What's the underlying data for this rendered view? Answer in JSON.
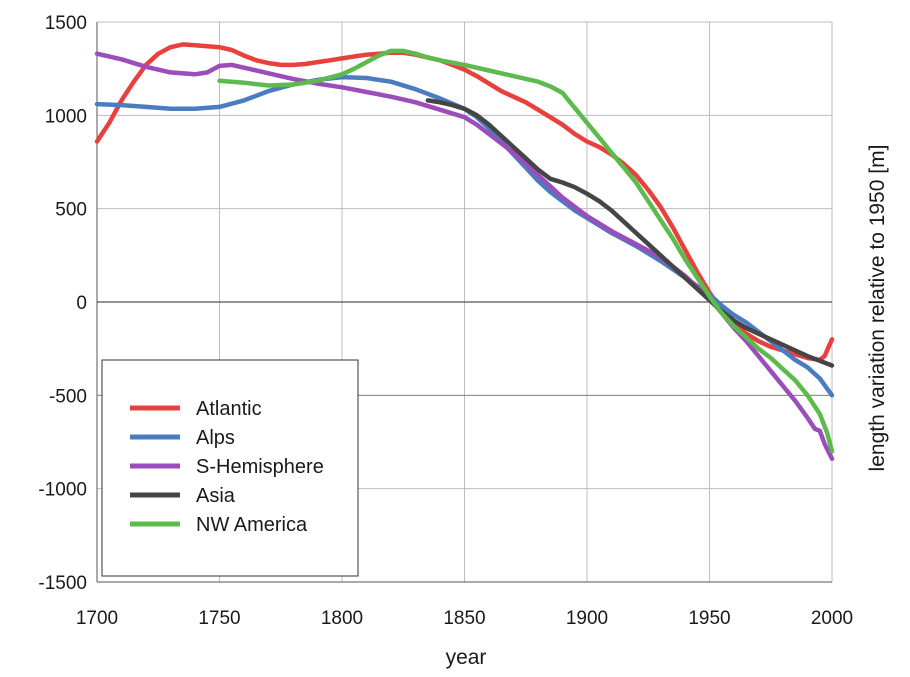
{
  "chart_data": {
    "type": "line",
    "title": "",
    "xlabel": "year",
    "ylabel": "length variation relative to 1950 [m]",
    "xlim": [
      1700,
      2000
    ],
    "ylim": [
      -1500,
      1500
    ],
    "x_ticks": [
      1700,
      1750,
      1800,
      1850,
      1900,
      1950,
      2000
    ],
    "y_ticks": [
      1500,
      1000,
      500,
      0,
      -500,
      -1000,
      -1500
    ],
    "x_tick_labels": [
      "1700",
      "1750",
      "1800",
      "1850",
      "1900",
      "1950",
      "2000"
    ],
    "y_tick_labels": [
      "1500",
      "1000",
      "500",
      "0",
      "-500",
      "-1000",
      "-1500"
    ],
    "grid": true,
    "legend_position": "bottom-left",
    "series": [
      {
        "name": "Atlantic",
        "color": "#e8403c",
        "x": [
          1700,
          1705,
          1710,
          1715,
          1720,
          1725,
          1730,
          1735,
          1740,
          1745,
          1750,
          1755,
          1760,
          1765,
          1770,
          1775,
          1780,
          1785,
          1790,
          1795,
          1800,
          1805,
          1810,
          1815,
          1820,
          1825,
          1830,
          1835,
          1840,
          1845,
          1850,
          1855,
          1860,
          1865,
          1870,
          1875,
          1880,
          1885,
          1890,
          1895,
          1900,
          1905,
          1910,
          1915,
          1920,
          1925,
          1930,
          1935,
          1940,
          1945,
          1950,
          1955,
          1960,
          1965,
          1970,
          1975,
          1980,
          1985,
          1990,
          1995,
          1997,
          2000
        ],
        "y": [
          860,
          960,
          1080,
          1180,
          1270,
          1330,
          1365,
          1380,
          1375,
          1370,
          1365,
          1350,
          1320,
          1295,
          1280,
          1270,
          1270,
          1275,
          1285,
          1295,
          1305,
          1315,
          1325,
          1330,
          1335,
          1335,
          1325,
          1310,
          1295,
          1270,
          1245,
          1210,
          1170,
          1130,
          1100,
          1070,
          1030,
          990,
          950,
          900,
          860,
          830,
          790,
          740,
          680,
          600,
          510,
          400,
          280,
          160,
          50,
          -40,
          -120,
          -170,
          -210,
          -240,
          -260,
          -280,
          -300,
          -310,
          -290,
          -200
        ]
      },
      {
        "name": "Alps",
        "color": "#4b7cc0",
        "x": [
          1700,
          1710,
          1720,
          1730,
          1740,
          1750,
          1760,
          1770,
          1780,
          1790,
          1800,
          1810,
          1820,
          1830,
          1840,
          1850,
          1855,
          1860,
          1865,
          1870,
          1875,
          1880,
          1885,
          1890,
          1895,
          1900,
          1910,
          1920,
          1930,
          1940,
          1950,
          1955,
          1960,
          1965,
          1970,
          1975,
          1980,
          1985,
          1990,
          1995,
          2000
        ],
        "y": [
          1060,
          1055,
          1045,
          1035,
          1035,
          1045,
          1080,
          1130,
          1165,
          1190,
          1205,
          1200,
          1180,
          1140,
          1090,
          1035,
          990,
          930,
          860,
          790,
          720,
          650,
          590,
          540,
          490,
          450,
          370,
          300,
          220,
          130,
          40,
          -20,
          -70,
          -110,
          -160,
          -210,
          -260,
          -310,
          -350,
          -410,
          -500
        ]
      },
      {
        "name": "S-Hemisphere",
        "color": "#9b4dbb",
        "x": [
          1700,
          1710,
          1720,
          1730,
          1740,
          1745,
          1750,
          1755,
          1760,
          1770,
          1780,
          1790,
          1800,
          1810,
          1820,
          1830,
          1840,
          1850,
          1855,
          1860,
          1865,
          1870,
          1875,
          1880,
          1885,
          1890,
          1895,
          1900,
          1905,
          1910,
          1920,
          1930,
          1940,
          1950,
          1955,
          1960,
          1965,
          1970,
          1975,
          1980,
          1985,
          1990,
          1993,
          1995,
          1997,
          2000
        ],
        "y": [
          1330,
          1300,
          1260,
          1230,
          1220,
          1230,
          1265,
          1270,
          1255,
          1225,
          1195,
          1170,
          1150,
          1125,
          1100,
          1070,
          1030,
          990,
          950,
          900,
          850,
          800,
          740,
          680,
          620,
          560,
          510,
          460,
          420,
          380,
          310,
          240,
          140,
          20,
          -60,
          -140,
          -210,
          -290,
          -370,
          -450,
          -530,
          -620,
          -680,
          -690,
          -760,
          -840
        ]
      },
      {
        "name": "Asia",
        "color": "#454545",
        "x": [
          1835,
          1840,
          1845,
          1850,
          1855,
          1860,
          1865,
          1870,
          1875,
          1880,
          1885,
          1890,
          1895,
          1900,
          1905,
          1910,
          1915,
          1920,
          1925,
          1930,
          1935,
          1940,
          1945,
          1950,
          1955,
          1960,
          1965,
          1970,
          1975,
          1980,
          1985,
          1990,
          1995,
          2000
        ],
        "y": [
          1080,
          1070,
          1055,
          1035,
          1000,
          950,
          890,
          830,
          770,
          710,
          660,
          640,
          615,
          580,
          540,
          490,
          430,
          370,
          310,
          250,
          190,
          130,
          70,
          10,
          -50,
          -100,
          -140,
          -170,
          -200,
          -230,
          -260,
          -290,
          -315,
          -340
        ]
      },
      {
        "name": "NW America",
        "color": "#5cbb4c",
        "x": [
          1750,
          1760,
          1770,
          1780,
          1790,
          1800,
          1805,
          1810,
          1815,
          1820,
          1825,
          1830,
          1835,
          1840,
          1850,
          1860,
          1870,
          1880,
          1885,
          1890,
          1895,
          1900,
          1905,
          1910,
          1915,
          1920,
          1925,
          1930,
          1935,
          1940,
          1945,
          1950,
          1955,
          1960,
          1965,
          1970,
          1975,
          1980,
          1985,
          1990,
          1995,
          1998,
          2000
        ],
        "y": [
          1185,
          1175,
          1160,
          1165,
          1185,
          1220,
          1250,
          1285,
          1320,
          1345,
          1345,
          1330,
          1310,
          1295,
          1270,
          1240,
          1210,
          1180,
          1155,
          1120,
          1040,
          960,
          880,
          800,
          720,
          640,
          540,
          440,
          340,
          230,
          130,
          30,
          -60,
          -130,
          -190,
          -250,
          -300,
          -360,
          -420,
          -500,
          -600,
          -700,
          -800
        ]
      }
    ]
  }
}
